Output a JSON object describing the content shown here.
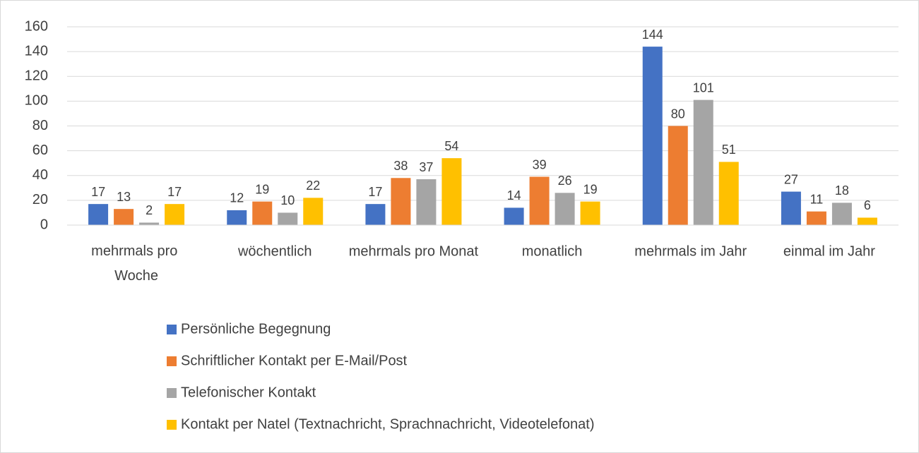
{
  "chart_data": {
    "type": "bar",
    "categories": [
      "mehrmals pro Woche",
      "wöchentlich",
      "mehrmals pro Monat",
      "monatlich",
      "mehrmals im Jahr",
      "einmal im Jahr"
    ],
    "series": [
      {
        "name": "Persönliche Begegnung",
        "color": "#4472c4",
        "values": [
          17,
          12,
          17,
          14,
          144,
          27
        ]
      },
      {
        "name": "Schriftlicher Kontakt per E-Mail/Post",
        "color": "#ed7d31",
        "values": [
          13,
          19,
          38,
          39,
          80,
          11
        ]
      },
      {
        "name": "Telefonischer Kontakt",
        "color": "#a5a5a5",
        "values": [
          2,
          10,
          37,
          26,
          101,
          18
        ]
      },
      {
        "name": "Kontakt per Natel (Textnachricht, Sprachnachricht, Videotelefonat)",
        "color": "#ffc000",
        "values": [
          17,
          22,
          54,
          19,
          51,
          6
        ]
      }
    ],
    "ylim": [
      0,
      160
    ],
    "yticks": [
      0,
      20,
      40,
      60,
      80,
      100,
      120,
      140,
      160
    ],
    "grid": true,
    "legend": "bottom"
  }
}
